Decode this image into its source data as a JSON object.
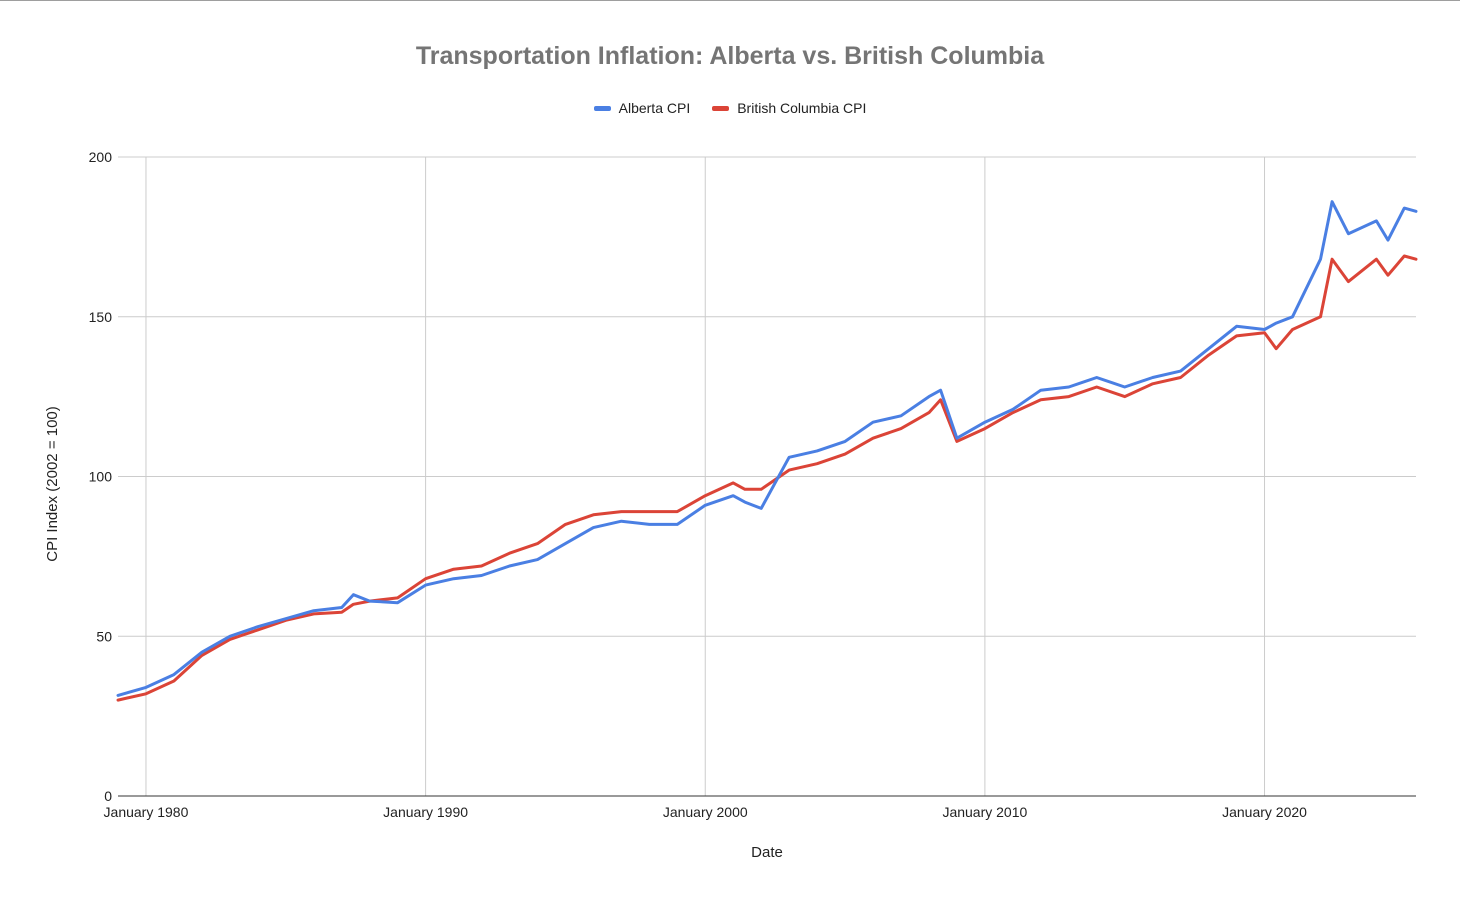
{
  "chart_data": {
    "type": "line",
    "title": "Transportation Inflation: Alberta vs. British Columbia",
    "xlabel": "Date",
    "ylabel": "CPI Index (2002 = 100)",
    "ylim": [
      0,
      200
    ],
    "xlim": [
      "1979-01",
      "2025-06"
    ],
    "y_ticks": [
      0,
      50,
      100,
      150,
      200
    ],
    "x_ticks": [
      {
        "date": "1980-01",
        "label": "January 1980"
      },
      {
        "date": "1990-01",
        "label": "January 1990"
      },
      {
        "date": "2000-01",
        "label": "January 2000"
      },
      {
        "date": "2010-01",
        "label": "January 2010"
      },
      {
        "date": "2020-01",
        "label": "January 2020"
      }
    ],
    "grid": true,
    "legend_position": "top",
    "x": [
      "1979-01",
      "1980-01",
      "1981-01",
      "1982-01",
      "1983-01",
      "1984-01",
      "1985-01",
      "1986-01",
      "1987-01",
      "1987-06",
      "1988-01",
      "1989-01",
      "1990-01",
      "1991-01",
      "1992-01",
      "1993-01",
      "1994-01",
      "1995-01",
      "1996-01",
      "1997-01",
      "1998-01",
      "1999-01",
      "2000-01",
      "2001-01",
      "2001-06",
      "2002-01",
      "2003-01",
      "2004-01",
      "2005-01",
      "2006-01",
      "2007-01",
      "2008-01",
      "2008-06",
      "2009-01",
      "2010-01",
      "2011-01",
      "2012-01",
      "2013-01",
      "2014-01",
      "2015-01",
      "2016-01",
      "2017-01",
      "2018-01",
      "2019-01",
      "2020-01",
      "2020-06",
      "2021-01",
      "2022-01",
      "2022-06",
      "2023-01",
      "2024-01",
      "2024-06",
      "2025-01",
      "2025-06"
    ],
    "series": [
      {
        "name": "Alberta CPI",
        "color": "#4a7fe3",
        "values": [
          31.5,
          34,
          38,
          45,
          50,
          53,
          55.5,
          58,
          59,
          63,
          61,
          60.5,
          66,
          68,
          69,
          72,
          74,
          79,
          84,
          86,
          85,
          85,
          91,
          94,
          92,
          90,
          106,
          108,
          111,
          117,
          119,
          125,
          127,
          112,
          117,
          121,
          127,
          128,
          131,
          128,
          131,
          133,
          140,
          147,
          146,
          148,
          150,
          168,
          186,
          176,
          180,
          174,
          184,
          183
        ]
      },
      {
        "name": "British Columbia CPI",
        "color": "#db4437",
        "values": [
          30,
          32,
          36,
          44,
          49,
          52,
          55,
          57,
          57.5,
          60,
          61,
          62,
          68,
          71,
          72,
          76,
          79,
          85,
          88,
          89,
          89,
          89,
          94,
          98,
          96,
          96,
          102,
          104,
          107,
          112,
          115,
          120,
          124,
          111,
          115,
          120,
          124,
          125,
          128,
          125,
          129,
          131,
          138,
          144,
          145,
          140,
          146,
          150,
          168,
          161,
          168,
          163,
          169,
          168
        ]
      }
    ]
  }
}
